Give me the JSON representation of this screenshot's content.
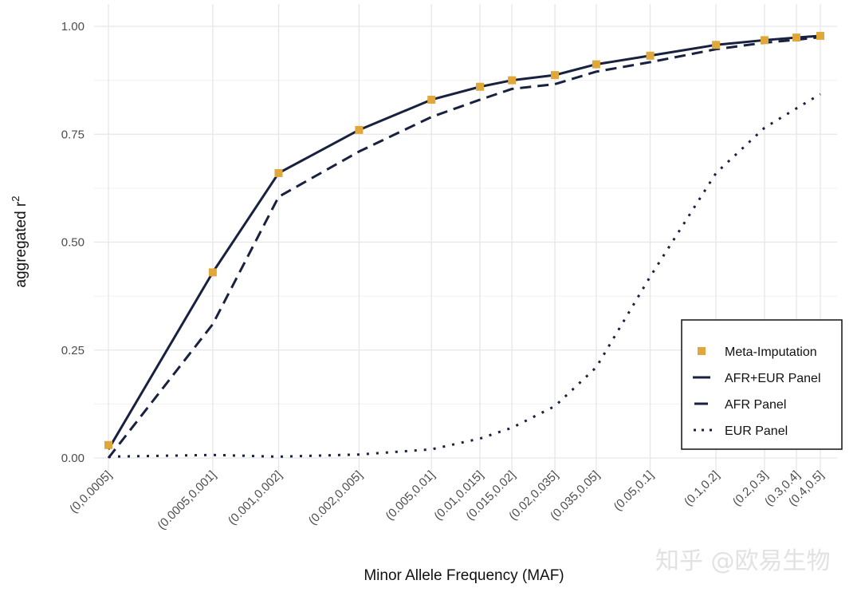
{
  "chart_data": {
    "type": "line",
    "title": "",
    "xlabel": "Minor Allele Frequency (MAF)",
    "ylabel": "aggregated r",
    "ylabel_superscript": "2",
    "x_scale": "log10 of bin midpoint",
    "categories": [
      "(0,0.0005]",
      "(0.0005,0.001]",
      "(0.001,0.002]",
      "(0.002,0.005]",
      "(0.005,0.01]",
      "(0.01,0.015]",
      "(0.015,0.02]",
      "(0.02,0.035]",
      "(0.035,0.05]",
      "(0.05,0.1]",
      "(0.1,0.2]",
      "(0.2,0.3]",
      "(0.3,0.4]",
      "(0.4,0.5]"
    ],
    "x": [
      0.00025,
      0.00075,
      0.0015,
      0.0035,
      0.0075,
      0.0125,
      0.0175,
      0.0275,
      0.0425,
      0.075,
      0.15,
      0.25,
      0.35,
      0.45
    ],
    "ylim": [
      0,
      1
    ],
    "yticks": [
      "0.00",
      "0.25",
      "0.50",
      "0.75",
      "1.00"
    ],
    "ytick_values": [
      0,
      0.25,
      0.5,
      0.75,
      1.0
    ],
    "grid": true,
    "legend_position": "bottom-right",
    "series": [
      {
        "name": "Meta-Imputation",
        "style": "square-points",
        "color": "#e0a83a",
        "values": [
          0.03,
          0.43,
          0.66,
          0.76,
          0.83,
          0.86,
          0.875,
          0.887,
          0.912,
          0.932,
          0.957,
          0.968,
          0.974,
          0.978
        ]
      },
      {
        "name": "AFR+EUR Panel",
        "style": "solid",
        "color": "#18213f",
        "values": [
          0.02,
          0.43,
          0.66,
          0.76,
          0.83,
          0.86,
          0.875,
          0.887,
          0.912,
          0.932,
          0.957,
          0.968,
          0.974,
          0.978
        ]
      },
      {
        "name": "AFR Panel",
        "style": "dashed",
        "color": "#18213f",
        "values": [
          0.0,
          0.31,
          0.605,
          0.71,
          0.79,
          0.83,
          0.855,
          0.866,
          0.895,
          0.917,
          0.947,
          0.962,
          0.969,
          0.975
        ]
      },
      {
        "name": "EUR Panel",
        "style": "dotted",
        "color": "#18213f",
        "values": [
          0.003,
          0.007,
          0.003,
          0.008,
          0.02,
          0.045,
          0.07,
          0.12,
          0.21,
          0.42,
          0.66,
          0.765,
          0.81,
          0.843
        ]
      }
    ]
  },
  "watermark": "知乎 @欧易生物"
}
